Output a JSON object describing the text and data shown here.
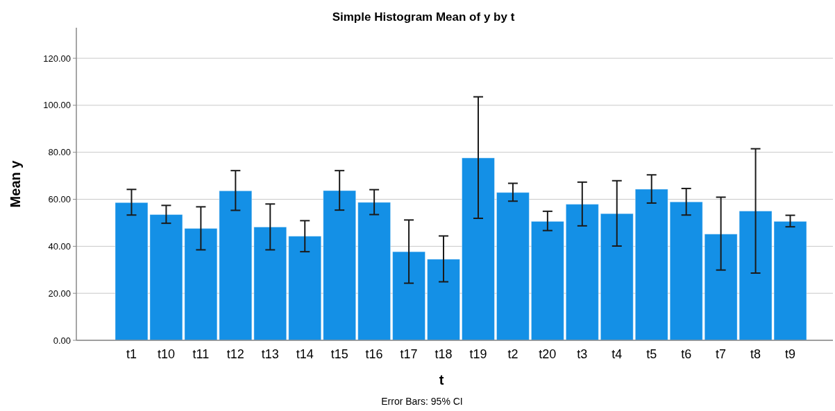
{
  "chart_data": {
    "type": "bar",
    "title": "Simple Histogram Mean of y by t",
    "xlabel": "t",
    "ylabel": "Mean y",
    "categories": [
      "t1",
      "t10",
      "t11",
      "t12",
      "t13",
      "t14",
      "t15",
      "t16",
      "t17",
      "t18",
      "t19",
      "t2",
      "t20",
      "t3",
      "t4",
      "t5",
      "t6",
      "t7",
      "t8",
      "t9"
    ],
    "values": [
      58.6,
      53.5,
      47.6,
      63.6,
      48.2,
      44.3,
      63.7,
      58.7,
      37.7,
      34.5,
      77.6,
      62.9,
      50.6,
      57.9,
      53.9,
      64.3,
      58.9,
      45.2,
      55.0,
      50.6
    ],
    "errors": [
      [
        53.3,
        64.2
      ],
      [
        49.8,
        57.4
      ],
      [
        38.5,
        56.8
      ],
      [
        55.3,
        72.2
      ],
      [
        38.5,
        58.0
      ],
      [
        37.7,
        50.9
      ],
      [
        55.4,
        72.2
      ],
      [
        53.5,
        64.1
      ],
      [
        24.3,
        51.2
      ],
      [
        24.9,
        44.4
      ],
      [
        51.9,
        103.6
      ],
      [
        59.2,
        66.8
      ],
      [
        46.7,
        54.9
      ],
      [
        48.7,
        67.3
      ],
      [
        40.1,
        67.9
      ],
      [
        58.4,
        70.4
      ],
      [
        53.3,
        64.6
      ],
      [
        29.9,
        60.9
      ],
      [
        28.6,
        81.5
      ],
      [
        48.3,
        53.2
      ]
    ],
    "color": "#1490e6",
    "ylim": [
      0,
      133
    ],
    "yticks": [
      {
        "value": 0,
        "label": "0.00"
      },
      {
        "value": 20,
        "label": "20.00"
      },
      {
        "value": 40,
        "label": "40.00"
      },
      {
        "value": 60,
        "label": "60.00"
      },
      {
        "value": 80,
        "label": "80.00"
      },
      {
        "value": 100,
        "label": "100.00"
      },
      {
        "value": 120,
        "label": "120.00"
      }
    ],
    "grid": "y",
    "annotations": [
      "Error Bars: 95% CI"
    ]
  }
}
